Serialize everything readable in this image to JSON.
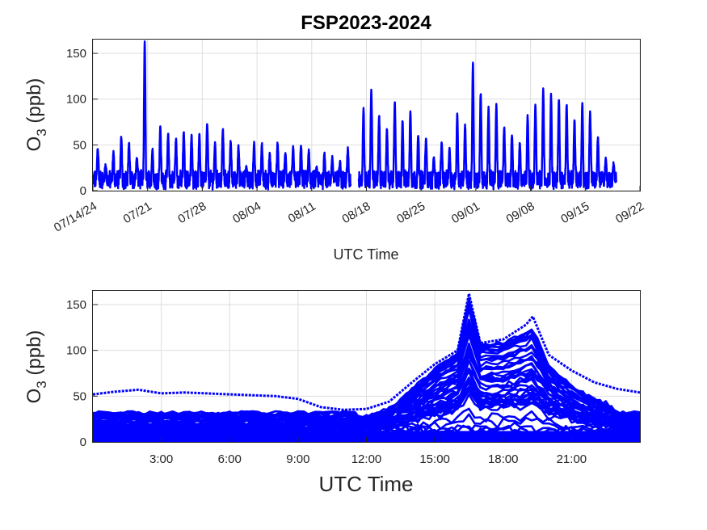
{
  "figure_title": "FSP2023-2024",
  "colors": {
    "series": "#0000ff",
    "axes": "#262626",
    "grid": "#dedede"
  },
  "chart_data": [
    {
      "type": "scatter",
      "title": "FSP2023-2024",
      "xlabel": "UTC Time",
      "ylabel_main": "O",
      "ylabel_sub": "3",
      "ylabel_tail": " (ppb)",
      "x_kind": "date",
      "xlim": [
        "2024-07-14",
        "2024-09-22"
      ],
      "ylim": [
        0,
        165
      ],
      "yticks": [
        0,
        50,
        100,
        150
      ],
      "xticks": [
        {
          "date": "2024-07-14",
          "label": "07/14/24"
        },
        {
          "date": "2024-07-21",
          "label": "07/21"
        },
        {
          "date": "2024-07-28",
          "label": "07/28"
        },
        {
          "date": "2024-08-04",
          "label": "08/04"
        },
        {
          "date": "2024-08-11",
          "label": "08/11"
        },
        {
          "date": "2024-08-18",
          "label": "08/18"
        },
        {
          "date": "2024-08-25",
          "label": "08/25"
        },
        {
          "date": "2024-09-01",
          "label": "09/01"
        },
        {
          "date": "2024-09-08",
          "label": "09/08"
        },
        {
          "date": "2024-09-15",
          "label": "09/15"
        },
        {
          "date": "2024-09-22",
          "label": "09/22"
        }
      ],
      "grid": true,
      "series": [
        {
          "daily_max": [
            [
              "2024-07-14",
              47
            ],
            [
              "2024-07-15",
              28
            ],
            [
              "2024-07-16",
              42
            ],
            [
              "2024-07-17",
              59
            ],
            [
              "2024-07-18",
              52
            ],
            [
              "2024-07-19",
              36
            ],
            [
              "2024-07-20",
              163
            ],
            [
              "2024-07-21",
              45
            ],
            [
              "2024-07-22",
              70
            ],
            [
              "2024-07-23",
              62
            ],
            [
              "2024-07-24",
              57
            ],
            [
              "2024-07-25",
              64
            ],
            [
              "2024-07-26",
              60
            ],
            [
              "2024-07-27",
              61
            ],
            [
              "2024-07-28",
              73
            ],
            [
              "2024-07-29",
              52
            ],
            [
              "2024-07-30",
              67
            ],
            [
              "2024-07-31",
              54
            ],
            [
              "2024-08-01",
              48
            ],
            [
              "2024-08-02",
              27
            ],
            [
              "2024-08-03",
              52
            ],
            [
              "2024-08-04",
              51
            ],
            [
              "2024-08-05",
              40
            ],
            [
              "2024-08-06",
              53
            ],
            [
              "2024-08-07",
              41
            ],
            [
              "2024-08-08",
              48
            ],
            [
              "2024-08-09",
              49
            ],
            [
              "2024-08-10",
              44
            ],
            [
              "2024-08-11",
              25
            ],
            [
              "2024-08-12",
              42
            ],
            [
              "2024-08-13",
              38
            ],
            [
              "2024-08-14",
              31
            ],
            [
              "2024-08-15",
              46
            ],
            [
              "2024-08-17",
              90
            ],
            [
              "2024-08-18",
              109
            ],
            [
              "2024-08-19",
              82
            ],
            [
              "2024-08-20",
              67
            ],
            [
              "2024-08-21",
              97
            ],
            [
              "2024-08-22",
              76
            ],
            [
              "2024-08-23",
              87
            ],
            [
              "2024-08-24",
              61
            ],
            [
              "2024-08-25",
              56
            ],
            [
              "2024-08-26",
              38
            ],
            [
              "2024-08-27",
              52
            ],
            [
              "2024-08-28",
              47
            ],
            [
              "2024-08-29",
              84
            ],
            [
              "2024-08-30",
              72
            ],
            [
              "2024-08-31",
              139
            ],
            [
              "2024-09-01",
              106
            ],
            [
              "2024-09-02",
              90
            ],
            [
              "2024-09-03",
              93
            ],
            [
              "2024-09-04",
              70
            ],
            [
              "2024-09-05",
              62
            ],
            [
              "2024-09-06",
              51
            ],
            [
              "2024-09-07",
              82
            ],
            [
              "2024-09-08",
              95
            ],
            [
              "2024-09-09",
              112
            ],
            [
              "2024-09-10",
              104
            ],
            [
              "2024-09-11",
              100
            ],
            [
              "2024-09-12",
              94
            ],
            [
              "2024-09-13",
              77
            ],
            [
              "2024-09-14",
              96
            ],
            [
              "2024-09-15",
              85
            ],
            [
              "2024-09-16",
              58
            ],
            [
              "2024-09-17",
              35
            ],
            [
              "2024-09-18",
              30
            ]
          ]
        }
      ]
    },
    {
      "type": "scatter",
      "xlabel": "UTC Time",
      "ylabel_main": "O",
      "ylabel_sub": "3",
      "ylabel_tail": " (ppb)",
      "x_kind": "time_of_day",
      "xlim": [
        0,
        24
      ],
      "ylim": [
        0,
        165
      ],
      "yticks": [
        0,
        50,
        100,
        150
      ],
      "xticks": [
        {
          "hour": 3,
          "label": "3:00"
        },
        {
          "hour": 6,
          "label": "6:00"
        },
        {
          "hour": 9,
          "label": "9:00"
        },
        {
          "hour": 12,
          "label": "12:00"
        },
        {
          "hour": 15,
          "label": "15:00"
        },
        {
          "hour": 18,
          "label": "18:00"
        },
        {
          "hour": 21,
          "label": "21:00"
        }
      ],
      "grid": true,
      "series": [
        {
          "upper_envelope": [
            [
              0,
              52
            ],
            [
              1,
              55
            ],
            [
              2,
              57
            ],
            [
              3,
              53
            ],
            [
              4,
              54
            ],
            [
              5,
              53
            ],
            [
              6,
              52
            ],
            [
              7,
              51
            ],
            [
              8,
              50
            ],
            [
              9,
              47
            ],
            [
              10,
              38
            ],
            [
              11,
              35
            ],
            [
              12,
              36
            ],
            [
              13,
              44
            ],
            [
              14,
              65
            ],
            [
              15,
              85
            ],
            [
              16,
              100
            ],
            [
              16.5,
              162
            ],
            [
              17,
              108
            ],
            [
              18,
              112
            ],
            [
              19,
              128
            ],
            [
              19.3,
              137
            ],
            [
              20,
              95
            ],
            [
              21,
              78
            ],
            [
              22,
              65
            ],
            [
              23,
              58
            ],
            [
              24,
              54
            ]
          ]
        }
      ]
    }
  ]
}
